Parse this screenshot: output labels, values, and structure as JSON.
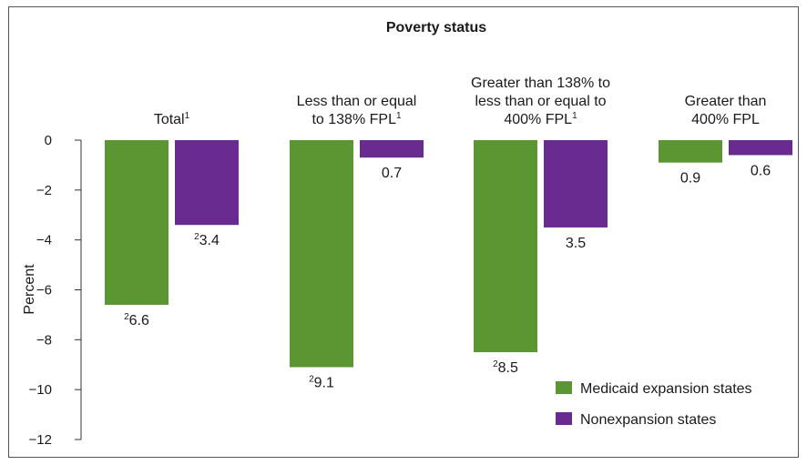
{
  "chart_data": {
    "type": "bar",
    "title": "Poverty status",
    "ylabel": "Percent",
    "xlabel": "",
    "ylim": [
      -12,
      0
    ],
    "yticks": [
      "0",
      "−2",
      "−4",
      "−6",
      "−8",
      "−10",
      "−12"
    ],
    "ytick_values": [
      0,
      -2,
      -4,
      -6,
      -8,
      -10,
      -12
    ],
    "grid": false,
    "legend_position": "bottom-right",
    "categories": [
      {
        "lines": [
          "Total"
        ],
        "footnote": "1"
      },
      {
        "lines": [
          "Less than or equal",
          "to 138% FPL"
        ],
        "footnote": "1"
      },
      {
        "lines": [
          "Greater than 138% to",
          "less than or equal to",
          "400% FPL"
        ],
        "footnote": "1"
      },
      {
        "lines": [
          "Greater than",
          "400% FPL"
        ],
        "footnote": ""
      }
    ],
    "series": [
      {
        "name": "Medicaid expansion states",
        "color": "#5b9632",
        "values": [
          -6.6,
          -9.1,
          -8.5,
          -0.9
        ],
        "labels": [
          "6.6",
          "9.1",
          "8.5",
          "0.9"
        ],
        "footnotes": [
          "2",
          "2",
          "2",
          ""
        ]
      },
      {
        "name": "Nonexpansion states",
        "color": "#6a2b90",
        "values": [
          -3.4,
          -0.7,
          -3.5,
          -0.6
        ],
        "labels": [
          "3.4",
          "0.7",
          "3.5",
          "0.6"
        ],
        "footnotes": [
          "2",
          "",
          "",
          ""
        ]
      }
    ]
  }
}
